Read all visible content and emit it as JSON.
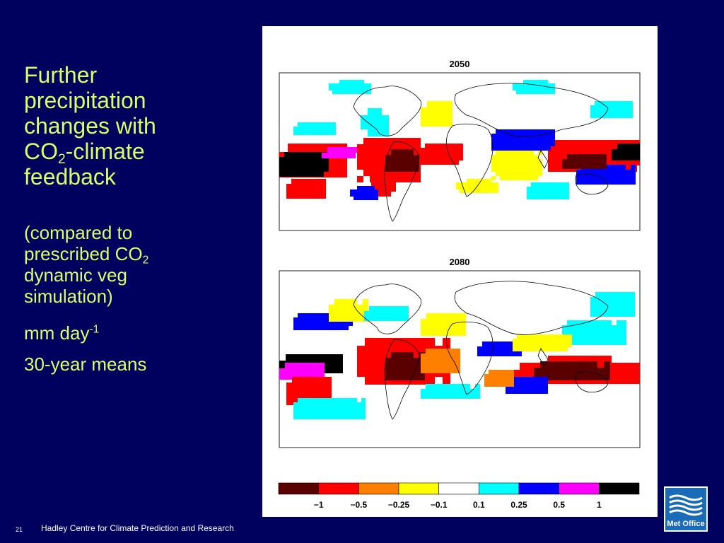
{
  "slide": {
    "title_line1": "Further",
    "title_line2": "precipitation",
    "title_line3": "changes with",
    "title_co": "CO",
    "title_sub": "2",
    "title_after": "-climate",
    "title_line5": "feedback",
    "sub_line1": "(compared to",
    "sub_line2_prefix": "prescribed CO",
    "sub_line2_sub": "2",
    "sub_line3": "dynamic veg",
    "sub_line4": "simulation)",
    "units_base": "mm day",
    "units_exp": "-1",
    "means": "30-year means"
  },
  "footer": {
    "page_number": "21",
    "organisation": "Hadley Centre for Climate Prediction and Research"
  },
  "logo": {
    "text": "Met Office",
    "icon": "met-office-waves-icon",
    "color": "#1a6bb8"
  },
  "colors": {
    "background": "#00005e",
    "text_accent": "#d8ff66"
  },
  "chart_data": [
    {
      "type": "heatmap",
      "title": "2050",
      "field": "precipitation change",
      "units": "mm day-1"
    },
    {
      "type": "heatmap",
      "title": "2080",
      "field": "precipitation change",
      "units": "mm day-1"
    }
  ],
  "colorbar": {
    "colors": [
      "#5a0000",
      "#ff0000",
      "#ff8000",
      "#ffff00",
      "#ffffff",
      "#00ffff",
      "#0000ff",
      "#ff00ff",
      "#000000"
    ],
    "tick_labels": [
      "−1",
      "−0.5",
      "−0.25",
      "−0.1",
      "0.1",
      "0.25",
      "0.5",
      "1"
    ]
  }
}
